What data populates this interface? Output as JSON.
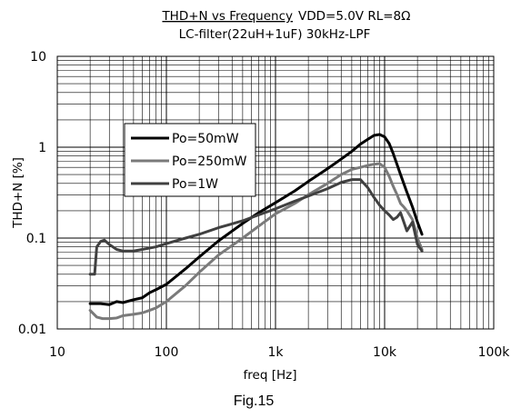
{
  "chart_data": {
    "type": "line",
    "title_underlined": "THD+N vs Frequency",
    "title_rest": "VDD=5.0V RL=8Ω",
    "subtitle": "LC-filter(22uH+1uF) 30kHz-LPF",
    "xlabel": "freq [Hz]",
    "ylabel": "THD+N [%]",
    "figure_label": "Fig.15",
    "x_scale": "log",
    "y_scale": "log",
    "xlim": [
      10,
      100000
    ],
    "ylim": [
      0.01,
      10
    ],
    "x_ticks": [
      "10",
      "100",
      "1k",
      "10k",
      "100k"
    ],
    "y_ticks": [
      "10",
      "1",
      "0.1",
      "0.01"
    ],
    "grid": true,
    "legend_position": "upper-left",
    "series": [
      {
        "name": "Po=50mW",
        "color": "#000000",
        "points": [
          [
            20,
            0.019
          ],
          [
            25,
            0.019
          ],
          [
            30,
            0.0185
          ],
          [
            35,
            0.02
          ],
          [
            40,
            0.0195
          ],
          [
            50,
            0.021
          ],
          [
            60,
            0.022
          ],
          [
            70,
            0.025
          ],
          [
            80,
            0.027
          ],
          [
            100,
            0.031
          ],
          [
            150,
            0.046
          ],
          [
            200,
            0.062
          ],
          [
            300,
            0.093
          ],
          [
            500,
            0.145
          ],
          [
            700,
            0.19
          ],
          [
            1000,
            0.245
          ],
          [
            1500,
            0.33
          ],
          [
            2000,
            0.42
          ],
          [
            3000,
            0.58
          ],
          [
            4000,
            0.74
          ],
          [
            5000,
            0.9
          ],
          [
            6000,
            1.08
          ],
          [
            7000,
            1.22
          ],
          [
            8000,
            1.35
          ],
          [
            9000,
            1.38
          ],
          [
            10000,
            1.3
          ],
          [
            11000,
            1.1
          ],
          [
            12000,
            0.85
          ],
          [
            14000,
            0.5
          ],
          [
            16000,
            0.32
          ],
          [
            18000,
            0.22
          ],
          [
            20000,
            0.15
          ],
          [
            22000,
            0.11
          ]
        ]
      },
      {
        "name": "Po=250mW",
        "color": "#7a7a7a",
        "points": [
          [
            20,
            0.016
          ],
          [
            23,
            0.0135
          ],
          [
            26,
            0.013
          ],
          [
            30,
            0.013
          ],
          [
            35,
            0.0132
          ],
          [
            40,
            0.014
          ],
          [
            50,
            0.0145
          ],
          [
            60,
            0.015
          ],
          [
            70,
            0.016
          ],
          [
            80,
            0.017
          ],
          [
            100,
            0.02
          ],
          [
            150,
            0.03
          ],
          [
            200,
            0.042
          ],
          [
            300,
            0.065
          ],
          [
            500,
            0.1
          ],
          [
            700,
            0.135
          ],
          [
            1000,
            0.185
          ],
          [
            1500,
            0.24
          ],
          [
            2000,
            0.3
          ],
          [
            3000,
            0.4
          ],
          [
            4000,
            0.5
          ],
          [
            5000,
            0.57
          ],
          [
            6000,
            0.6
          ],
          [
            7000,
            0.63
          ],
          [
            8000,
            0.65
          ],
          [
            9000,
            0.66
          ],
          [
            10000,
            0.6
          ],
          [
            11000,
            0.48
          ],
          [
            12000,
            0.37
          ],
          [
            13000,
            0.3
          ],
          [
            14000,
            0.24
          ],
          [
            15000,
            0.22
          ],
          [
            16000,
            0.2
          ],
          [
            18000,
            0.16
          ],
          [
            20000,
            0.1
          ],
          [
            22000,
            0.075
          ]
        ]
      },
      {
        "name": "Po=1W",
        "color": "#404040",
        "points": [
          [
            20,
            0.04
          ],
          [
            22,
            0.04
          ],
          [
            23,
            0.08
          ],
          [
            25,
            0.092
          ],
          [
            27,
            0.095
          ],
          [
            30,
            0.085
          ],
          [
            35,
            0.075
          ],
          [
            40,
            0.072
          ],
          [
            50,
            0.072
          ],
          [
            60,
            0.075
          ],
          [
            80,
            0.08
          ],
          [
            100,
            0.087
          ],
          [
            150,
            0.1
          ],
          [
            200,
            0.11
          ],
          [
            300,
            0.13
          ],
          [
            500,
            0.155
          ],
          [
            700,
            0.18
          ],
          [
            1000,
            0.21
          ],
          [
            1500,
            0.255
          ],
          [
            2000,
            0.29
          ],
          [
            3000,
            0.35
          ],
          [
            4000,
            0.41
          ],
          [
            5000,
            0.44
          ],
          [
            6000,
            0.44
          ],
          [
            7000,
            0.36
          ],
          [
            8000,
            0.28
          ],
          [
            9000,
            0.23
          ],
          [
            10000,
            0.2
          ],
          [
            11000,
            0.18
          ],
          [
            12000,
            0.16
          ],
          [
            13000,
            0.17
          ],
          [
            14000,
            0.19
          ],
          [
            15000,
            0.15
          ],
          [
            16000,
            0.12
          ],
          [
            18000,
            0.15
          ],
          [
            20000,
            0.085
          ],
          [
            22000,
            0.072
          ]
        ]
      }
    ]
  }
}
